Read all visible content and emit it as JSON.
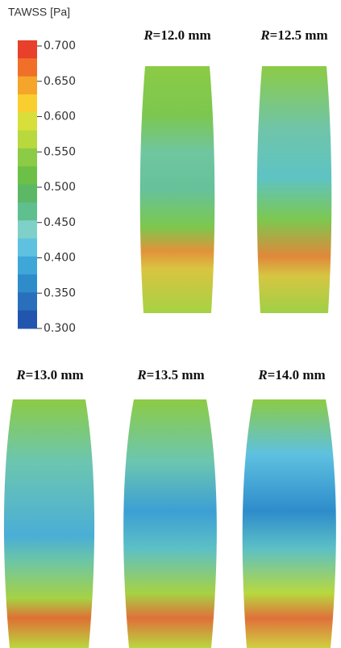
{
  "colorbar": {
    "title": "TAWSS [Pa]",
    "ticks": [
      "0.700",
      "0.650",
      "0.600",
      "0.550",
      "0.500",
      "0.450",
      "0.400",
      "0.350",
      "0.300"
    ],
    "colors": [
      "#e8402a",
      "#f0702a",
      "#f4a52a",
      "#f8cf2e",
      "#d9df3a",
      "#b8d83e",
      "#8ccb45",
      "#6cc048",
      "#5cb865",
      "#5fbf8e",
      "#7fd0c8",
      "#5ec1e0",
      "#3fa6d8",
      "#2e8ccb",
      "#2a6fbc",
      "#2255ad"
    ]
  },
  "panels": [
    {
      "var": "R",
      "text": "=12.0 mm"
    },
    {
      "var": "R",
      "text": "=12.5 mm"
    },
    {
      "var": "R",
      "text": "=13.0 mm"
    },
    {
      "var": "R",
      "text": "=13.5 mm"
    },
    {
      "var": "R",
      "text": "=14.0 mm"
    }
  ]
}
